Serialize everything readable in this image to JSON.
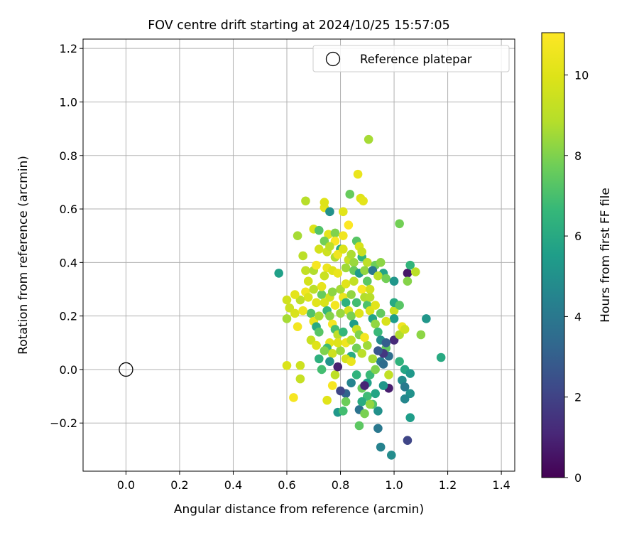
{
  "chart_data": {
    "type": "scatter",
    "title": "FOV centre drift starting at 2024/10/25 15:57:05",
    "xlabel": "Angular distance from reference (arcmin)",
    "ylabel": "Rotation from reference (arcmin)",
    "xlim": [
      -0.16,
      1.45
    ],
    "ylim": [
      -0.38,
      1.235
    ],
    "xticks": [
      0.0,
      0.2,
      0.4,
      0.6,
      0.8,
      1.0,
      1.2,
      1.4
    ],
    "yticks": [
      -0.2,
      0.0,
      0.2,
      0.4,
      0.6,
      0.8,
      1.0,
      1.2
    ],
    "xtick_labels": [
      "0.0",
      "0.2",
      "0.4",
      "0.6",
      "0.8",
      "1.0",
      "1.2",
      "1.4"
    ],
    "ytick_labels": [
      "−0.2",
      "0.0",
      "0.2",
      "0.4",
      "0.6",
      "0.8",
      "1.0",
      "1.2"
    ],
    "grid": true,
    "legend_position": "top-right",
    "reference": {
      "label": "Reference platepar",
      "x": 0.0,
      "y": 0.0
    },
    "colorbar": {
      "label": "Hours from first FF file",
      "min": 0,
      "max": 11.05,
      "ticks": [
        0,
        2,
        4,
        6,
        8,
        10
      ],
      "tick_labels": [
        "0",
        "2",
        "4",
        "6",
        "8",
        "10"
      ],
      "colormap": "viridis"
    },
    "series": [
      {
        "columns": [
          "x",
          "y",
          "hours"
        ],
        "points": [
          [
            0.57,
            0.36,
            5.6
          ],
          [
            0.905,
            0.86,
            8.6
          ],
          [
            0.865,
            0.73,
            10.4
          ],
          [
            0.875,
            0.64,
            10.0
          ],
          [
            0.885,
            0.63,
            10.2
          ],
          [
            0.835,
            0.655,
            7.6
          ],
          [
            0.67,
            0.63,
            8.9
          ],
          [
            0.74,
            0.605,
            10.2
          ],
          [
            0.76,
            0.59,
            5.0
          ],
          [
            0.81,
            0.59,
            10.1
          ],
          [
            0.74,
            0.625,
            10.0
          ],
          [
            1.02,
            0.545,
            7.8
          ],
          [
            0.64,
            0.5,
            8.6
          ],
          [
            0.7,
            0.525,
            9.9
          ],
          [
            0.72,
            0.52,
            7.2
          ],
          [
            0.755,
            0.505,
            10.2
          ],
          [
            0.78,
            0.51,
            8.0
          ],
          [
            0.81,
            0.5,
            10.6
          ],
          [
            0.74,
            0.48,
            7.8
          ],
          [
            0.78,
            0.48,
            10.9
          ],
          [
            0.83,
            0.54,
            11.0
          ],
          [
            0.86,
            0.48,
            7.3
          ],
          [
            0.87,
            0.46,
            9.8
          ],
          [
            0.8,
            0.45,
            6.0
          ],
          [
            0.75,
            0.44,
            9.5
          ],
          [
            0.72,
            0.45,
            9.7
          ],
          [
            0.66,
            0.425,
            9.0
          ],
          [
            0.78,
            0.42,
            8.8
          ],
          [
            0.83,
            0.41,
            9.3
          ],
          [
            0.85,
            0.4,
            8.4
          ],
          [
            0.88,
            0.42,
            6.5
          ],
          [
            0.9,
            0.4,
            9.1
          ],
          [
            0.93,
            0.39,
            7.7
          ],
          [
            0.95,
            0.4,
            8.2
          ],
          [
            0.96,
            0.36,
            5.8
          ],
          [
            0.67,
            0.37,
            9.2
          ],
          [
            0.7,
            0.37,
            8.8
          ],
          [
            0.75,
            0.38,
            10.5
          ],
          [
            0.77,
            0.37,
            10.0
          ],
          [
            0.79,
            0.36,
            10.4
          ],
          [
            0.82,
            0.38,
            8.5
          ],
          [
            0.85,
            0.37,
            7.6
          ],
          [
            0.87,
            0.36,
            5.4
          ],
          [
            0.89,
            0.37,
            8.3
          ],
          [
            0.92,
            0.37,
            4.0
          ],
          [
            0.94,
            0.35,
            9.0
          ],
          [
            0.97,
            0.34,
            7.8
          ],
          [
            1.0,
            0.33,
            5.2
          ],
          [
            1.05,
            0.36,
            0.6
          ],
          [
            1.06,
            0.39,
            6.5
          ],
          [
            1.08,
            0.365,
            9.0
          ],
          [
            1.05,
            0.33,
            8.1
          ],
          [
            0.6,
            0.26,
            9.6
          ],
          [
            0.61,
            0.23,
            9.5
          ],
          [
            0.63,
            0.21,
            9.8
          ],
          [
            0.6,
            0.19,
            8.6
          ],
          [
            0.64,
            0.16,
            10.7
          ],
          [
            0.67,
            0.29,
            10.6
          ],
          [
            0.68,
            0.27,
            9.9
          ],
          [
            0.7,
            0.3,
            9.0
          ],
          [
            0.71,
            0.25,
            10.1
          ],
          [
            0.69,
            0.21,
            7.2
          ],
          [
            0.7,
            0.18,
            10.3
          ],
          [
            0.71,
            0.16,
            6.0
          ],
          [
            0.72,
            0.14,
            7.3
          ],
          [
            0.69,
            0.11,
            9.4
          ],
          [
            0.71,
            0.09,
            10.0
          ],
          [
            0.73,
            0.28,
            7.6
          ],
          [
            0.74,
            0.25,
            9.8
          ],
          [
            0.75,
            0.22,
            6.6
          ],
          [
            0.76,
            0.2,
            8.1
          ],
          [
            0.77,
            0.17,
            10.8
          ],
          [
            0.78,
            0.15,
            7.0
          ],
          [
            0.79,
            0.13,
            9.1
          ],
          [
            0.76,
            0.1,
            10.2
          ],
          [
            0.75,
            0.08,
            6.8
          ],
          [
            0.77,
            0.06,
            9.5
          ],
          [
            0.8,
            0.3,
            8.6
          ],
          [
            0.81,
            0.27,
            10.4
          ],
          [
            0.82,
            0.25,
            6.3
          ],
          [
            0.83,
            0.22,
            9.7
          ],
          [
            0.84,
            0.2,
            7.9
          ],
          [
            0.85,
            0.17,
            5.5
          ],
          [
            0.86,
            0.15,
            9.3
          ],
          [
            0.87,
            0.13,
            8.0
          ],
          [
            0.82,
            0.1,
            10.6
          ],
          [
            0.8,
            0.07,
            8.4
          ],
          [
            0.84,
            0.05,
            6.1
          ],
          [
            0.88,
            0.3,
            10.9
          ],
          [
            0.89,
            0.27,
            8.8
          ],
          [
            0.9,
            0.24,
            7.1
          ],
          [
            0.91,
            0.22,
            9.9
          ],
          [
            0.92,
            0.19,
            5.8
          ],
          [
            0.93,
            0.17,
            8.3
          ],
          [
            0.94,
            0.14,
            6.7
          ],
          [
            0.95,
            0.11,
            4.8
          ],
          [
            0.97,
            0.08,
            7.5
          ],
          [
            0.98,
            0.05,
            3.6
          ],
          [
            1.0,
            0.11,
            1.2
          ],
          [
            1.0,
            0.22,
            9.4
          ],
          [
            1.0,
            0.25,
            6.0
          ],
          [
            1.02,
            0.24,
            7.3
          ],
          [
            1.02,
            0.13,
            8.8
          ],
          [
            1.03,
            0.16,
            10.6
          ],
          [
            1.04,
            0.15,
            9.6
          ],
          [
            1.0,
            0.19,
            5.5
          ],
          [
            1.02,
            0.03,
            6.4
          ],
          [
            1.04,
            0.0,
            5.9
          ],
          [
            1.06,
            -0.015,
            5.3
          ],
          [
            1.03,
            -0.04,
            4.8
          ],
          [
            1.04,
            -0.065,
            4.1
          ],
          [
            1.06,
            -0.09,
            5.0
          ],
          [
            1.04,
            -0.11,
            4.6
          ],
          [
            1.06,
            -0.18,
            5.5
          ],
          [
            1.05,
            -0.265,
            2.1
          ],
          [
            0.99,
            -0.32,
            4.8
          ],
          [
            0.95,
            -0.29,
            4.4
          ],
          [
            0.94,
            -0.22,
            4.0
          ],
          [
            0.94,
            -0.155,
            5.0
          ],
          [
            0.92,
            -0.13,
            7.2
          ],
          [
            0.9,
            -0.1,
            6.8
          ],
          [
            0.88,
            -0.07,
            7.6
          ],
          [
            0.87,
            -0.15,
            3.8
          ],
          [
            0.89,
            -0.165,
            7.9
          ],
          [
            0.87,
            -0.21,
            7.4
          ],
          [
            0.88,
            -0.12,
            6.1
          ],
          [
            0.9,
            -0.05,
            5.6
          ],
          [
            0.91,
            -0.02,
            6.7
          ],
          [
            0.93,
            0.0,
            8.0
          ],
          [
            0.95,
            0.03,
            4.2
          ],
          [
            0.96,
            0.06,
            1.6
          ],
          [
            0.97,
            0.1,
            3.0
          ],
          [
            0.98,
            -0.02,
            9.2
          ],
          [
            0.98,
            -0.07,
            0.8
          ],
          [
            0.96,
            -0.06,
            5.2
          ],
          [
            0.93,
            -0.09,
            5.8
          ],
          [
            0.91,
            -0.13,
            8.3
          ],
          [
            0.89,
            -0.06,
            1.0
          ],
          [
            0.86,
            -0.02,
            6.4
          ],
          [
            0.84,
            -0.05,
            4.5
          ],
          [
            0.82,
            -0.09,
            3.2
          ],
          [
            0.8,
            -0.08,
            2.1
          ],
          [
            0.79,
            -0.16,
            5.3
          ],
          [
            0.81,
            -0.155,
            6.9
          ],
          [
            0.82,
            -0.12,
            7.7
          ],
          [
            0.78,
            -0.02,
            9.1
          ],
          [
            0.79,
            0.01,
            0.9
          ],
          [
            0.77,
            -0.06,
            10.8
          ],
          [
            0.75,
            -0.115,
            10.1
          ],
          [
            0.73,
            0.0,
            6.9
          ],
          [
            0.76,
            0.03,
            5.1
          ],
          [
            0.72,
            0.04,
            6.3
          ],
          [
            0.74,
            0.07,
            8.0
          ],
          [
            0.82,
            0.04,
            9.7
          ],
          [
            0.84,
            0.03,
            10.4
          ],
          [
            0.86,
            0.08,
            7.8
          ],
          [
            0.88,
            0.06,
            9.0
          ],
          [
            0.9,
            0.09,
            8.5
          ],
          [
            0.92,
            0.04,
            8.6
          ],
          [
            0.94,
            0.07,
            2.7
          ],
          [
            0.96,
            0.02,
            3.5
          ],
          [
            1.1,
            0.13,
            8.2
          ],
          [
            1.12,
            0.19,
            5.2
          ],
          [
            1.175,
            0.045,
            6.0
          ],
          [
            0.625,
            -0.105,
            10.8
          ],
          [
            0.6,
            0.015,
            9.9
          ],
          [
            0.65,
            0.015,
            9.5
          ],
          [
            0.65,
            -0.035,
            9.3
          ],
          [
            0.82,
            0.32,
            10.1
          ],
          [
            0.85,
            0.33,
            9.2
          ],
          [
            0.8,
            0.21,
            8.4
          ],
          [
            0.78,
            0.24,
            10.7
          ],
          [
            0.76,
            0.27,
            9.6
          ],
          [
            0.73,
            0.31,
            10.3
          ],
          [
            0.72,
            0.2,
            8.7
          ],
          [
            0.65,
            0.26,
            9.1
          ],
          [
            0.66,
            0.22,
            10.5
          ],
          [
            0.74,
            0.35,
            9.4
          ],
          [
            0.71,
            0.39,
            10.8
          ],
          [
            0.9,
            0.33,
            7.4
          ],
          [
            0.91,
            0.3,
            9.6
          ],
          [
            0.87,
            0.21,
            10.0
          ],
          [
            0.86,
            0.25,
            6.9
          ],
          [
            0.84,
            0.28,
            8.3
          ],
          [
            0.79,
            0.43,
            10.6
          ],
          [
            0.81,
            0.45,
            9.9
          ],
          [
            0.84,
            0.43,
            8.7
          ],
          [
            0.88,
            0.44,
            9.4
          ],
          [
            0.91,
            0.27,
            8.9
          ],
          [
            0.93,
            0.24,
            10.1
          ],
          [
            0.95,
            0.21,
            7.5
          ],
          [
            0.97,
            0.18,
            9.8
          ],
          [
            0.89,
            0.12,
            10.7
          ],
          [
            0.84,
            0.11,
            9.2
          ],
          [
            0.81,
            0.14,
            6.6
          ],
          [
            0.79,
            0.1,
            10.0
          ],
          [
            0.77,
            0.29,
            8.2
          ],
          [
            0.68,
            0.33,
            9.7
          ],
          [
            0.63,
            0.28,
            10.2
          ],
          [
            0.76,
            0.46,
            9.1
          ]
        ]
      }
    ]
  }
}
